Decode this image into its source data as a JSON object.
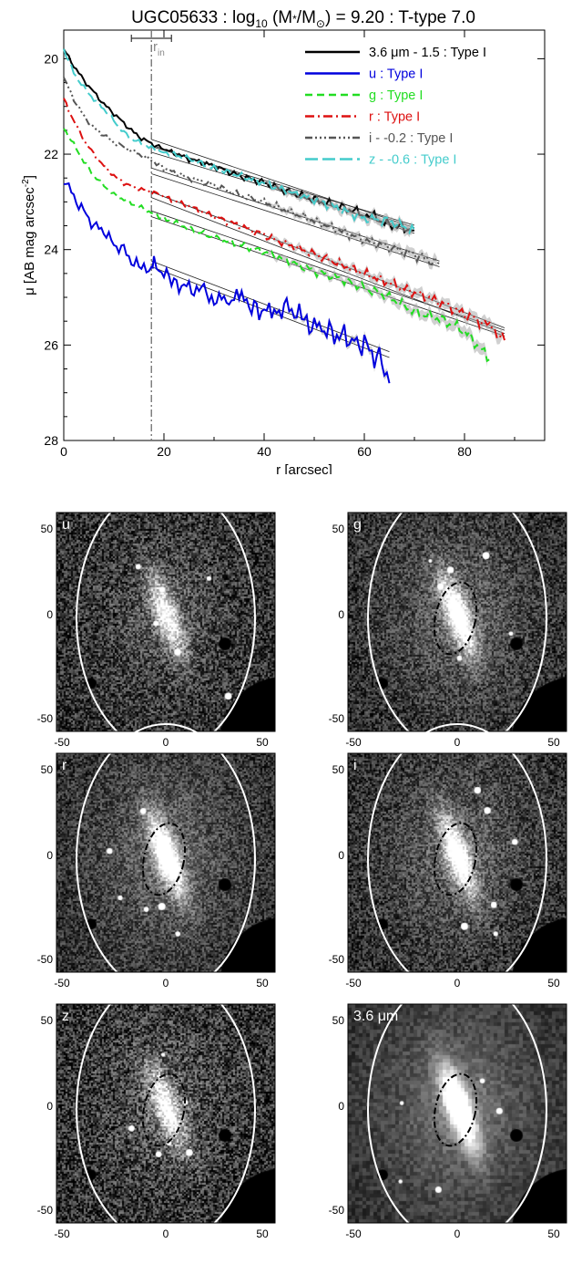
{
  "title_parts": {
    "prefix": "UGC05633 : log",
    "sub": "10",
    "middle": " (M",
    "star": "*",
    "slash": "/M",
    "sun": "⊙",
    "suffix": ") = 9.20 : T-type 7.0"
  },
  "rin_label": "r",
  "rin_sub": "in",
  "chart_data": {
    "type": "line",
    "xlabel": "r [arcsec]",
    "ylabel_parts": {
      "prefix": "μ [AB mag arcsec",
      "sup": "-2",
      "suffix": "]"
    },
    "xlim": [
      0,
      96
    ],
    "ylim": [
      28,
      19.4
    ],
    "y_inverted": true,
    "x_ticks": [
      0,
      20,
      40,
      60,
      80
    ],
    "y_ticks": [
      20,
      22,
      24,
      26,
      28
    ],
    "r_in": 17.5,
    "r_in_error": [
      13.5,
      21.5
    ],
    "legend_position": "top-right",
    "series": [
      {
        "name": "3.6 μm - 1.5 : Type I",
        "color": "#000000",
        "dash": "",
        "legend_color": "#000000",
        "x": [
          0,
          2,
          4,
          6,
          8,
          10,
          12,
          14,
          16,
          18,
          20,
          25,
          30,
          35,
          40,
          45,
          50,
          55,
          60,
          62,
          64,
          66,
          68,
          70
        ],
        "y": [
          19.8,
          20.15,
          20.45,
          20.7,
          20.95,
          21.15,
          21.35,
          21.55,
          21.7,
          21.8,
          21.9,
          22.1,
          22.25,
          22.45,
          22.6,
          22.8,
          22.95,
          23.1,
          23.25,
          23.3,
          23.45,
          23.5,
          23.55,
          23.6
        ],
        "fit": [
          21.75,
          23.6,
          17.5,
          70
        ]
      },
      {
        "name": "u : Type I",
        "color": "#0000dd",
        "dash": "",
        "legend_color": "#0000dd",
        "x": [
          0,
          2,
          4,
          6,
          8,
          10,
          12,
          14,
          16,
          17.5,
          18,
          20,
          22,
          25,
          28,
          30,
          33,
          35,
          38,
          40,
          42,
          45,
          48,
          50,
          52,
          55,
          58,
          60,
          62,
          64,
          65
        ],
        "y": [
          22.5,
          22.9,
          23.2,
          23.5,
          23.6,
          23.9,
          24.0,
          24.3,
          24.4,
          24.5,
          24.3,
          24.5,
          24.7,
          24.8,
          24.9,
          25.0,
          25.1,
          25.0,
          25.2,
          25.3,
          25.3,
          25.2,
          25.5,
          25.6,
          25.7,
          25.8,
          25.9,
          26.0,
          26.2,
          26.4,
          26.8
        ],
        "fit": [
          24.3,
          26.2,
          17.5,
          65
        ]
      },
      {
        "name": "g : Type I",
        "color": "#22dd22",
        "dash": "8,5",
        "legend_color": "#22dd22",
        "x": [
          0,
          2,
          4,
          6,
          8,
          10,
          12,
          14,
          16,
          18,
          20,
          25,
          30,
          35,
          40,
          45,
          50,
          55,
          60,
          65,
          70,
          75,
          80,
          85
        ],
        "y": [
          21.45,
          21.8,
          22.15,
          22.45,
          22.65,
          22.85,
          22.95,
          23.05,
          23.15,
          23.25,
          23.35,
          23.55,
          23.75,
          23.9,
          24.05,
          24.25,
          24.45,
          24.6,
          24.8,
          25.0,
          25.3,
          25.45,
          25.7,
          26.3
        ],
        "fit": [
          23.25,
          25.75,
          17.5,
          88
        ]
      },
      {
        "name": "r : Type I",
        "color": "#dd1111",
        "dash": "10,4,2,4",
        "legend_color": "#dd1111",
        "x": [
          0,
          2,
          4,
          6,
          8,
          10,
          12,
          14,
          16,
          18,
          20,
          25,
          30,
          35,
          40,
          45,
          50,
          55,
          60,
          65,
          70,
          75,
          80,
          85,
          88
        ],
        "y": [
          20.85,
          21.3,
          21.7,
          22.0,
          22.25,
          22.45,
          22.6,
          22.7,
          22.75,
          22.8,
          22.9,
          23.1,
          23.3,
          23.5,
          23.7,
          23.9,
          24.1,
          24.3,
          24.5,
          24.7,
          24.9,
          25.1,
          25.35,
          25.6,
          25.9
        ],
        "fit": [
          22.85,
          25.7,
          17.5,
          88
        ]
      },
      {
        "name": "i - -0.2 : Type I",
        "color": "#555555",
        "dash": "8,3,2,3,2,3,2,3",
        "legend_color": "#555555",
        "x": [
          0,
          2,
          4,
          6,
          8,
          10,
          12,
          14,
          16,
          18,
          20,
          25,
          30,
          35,
          40,
          45,
          50,
          55,
          60,
          65,
          70,
          75
        ],
        "y": [
          20.4,
          20.85,
          21.2,
          21.45,
          21.6,
          21.75,
          21.85,
          21.95,
          22.05,
          22.15,
          22.3,
          22.5,
          22.65,
          22.85,
          23.0,
          23.2,
          23.4,
          23.6,
          23.8,
          23.95,
          24.1,
          24.3
        ],
        "fit": [
          22.35,
          24.3,
          17.5,
          75
        ]
      },
      {
        "name": "z - -0.6 : Type I",
        "color": "#44cccc",
        "dash": "14,5",
        "legend_color": "#44cccc",
        "x": [
          0,
          2,
          4,
          6,
          8,
          10,
          12,
          14,
          16,
          18,
          20,
          25,
          30,
          35,
          40,
          45,
          50,
          55,
          60,
          65,
          70
        ],
        "y": [
          19.8,
          20.3,
          20.6,
          20.85,
          21.05,
          21.3,
          21.55,
          21.7,
          21.8,
          21.9,
          21.95,
          22.1,
          22.3,
          22.45,
          22.6,
          22.8,
          22.95,
          23.15,
          23.35,
          23.4,
          23.6
        ],
        "fit": [
          21.9,
          23.55,
          17.5,
          70
        ]
      }
    ]
  },
  "image_panels": [
    {
      "id": "u",
      "label": "u",
      "has_inner_ellipse": false,
      "pixel": 2,
      "seed": 11,
      "gain": 0.8,
      "noise": 0.55,
      "xticks": [
        "-50",
        "0",
        "50"
      ],
      "yticks": [
        "50",
        "0",
        "-50"
      ]
    },
    {
      "id": "g",
      "label": "g",
      "has_inner_ellipse": true,
      "pixel": 2,
      "seed": 23,
      "gain": 1.0,
      "noise": 0.45,
      "xticks": [
        "-50",
        "0",
        "50"
      ],
      "yticks": [
        "50",
        "0",
        "-50"
      ]
    },
    {
      "id": "r",
      "label": "r",
      "has_inner_ellipse": true,
      "pixel": 2,
      "seed": 37,
      "gain": 1.1,
      "noise": 0.42,
      "xticks": [
        "-50",
        "0",
        "50"
      ],
      "yticks": [
        "50",
        "0",
        "-50"
      ]
    },
    {
      "id": "i",
      "label": "i",
      "has_inner_ellipse": true,
      "pixel": 2,
      "seed": 41,
      "gain": 1.0,
      "noise": 0.45,
      "xticks": [
        "-50",
        "0",
        "50"
      ],
      "yticks": [
        "50",
        "0",
        "-50"
      ]
    },
    {
      "id": "z",
      "label": "z",
      "has_inner_ellipse": true,
      "pixel": 2,
      "seed": 53,
      "gain": 0.85,
      "noise": 0.6,
      "xticks": [
        "-50",
        "0",
        "50"
      ],
      "yticks": [
        "50",
        "0",
        "-50"
      ]
    },
    {
      "id": "ir",
      "label": "3.6 μm",
      "has_inner_ellipse": true,
      "pixel": 4,
      "seed": 67,
      "gain": 1.3,
      "noise": 0.2,
      "xticks": [
        "-50",
        "0",
        "50"
      ],
      "yticks": [
        "50",
        "0",
        "-50"
      ]
    }
  ]
}
